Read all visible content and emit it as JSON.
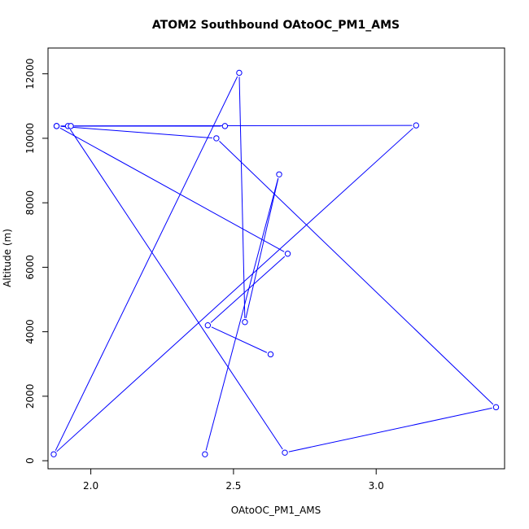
{
  "chart_data": {
    "type": "line",
    "title": "ATOM2 Southbound OAtoOC_PM1_AMS",
    "xlabel": "OAtoOC_PM1_AMS",
    "ylabel": "Altitude (m)",
    "xlim": [
      1.85,
      3.45
    ],
    "ylim": [
      -250,
      12800
    ],
    "xticks": [
      2.0,
      2.5,
      3.0
    ],
    "xtick_labels": [
      "2.0",
      "2.5",
      "3.0"
    ],
    "yticks": [
      0,
      2000,
      4000,
      6000,
      8000,
      10000,
      12000
    ],
    "ytick_labels": [
      "0",
      "2000",
      "4000",
      "6000",
      "8000",
      "10000",
      "12000"
    ],
    "series": [
      {
        "markers": "open-circle",
        "color": "#0000ff",
        "x": [
          2.63,
          2.41,
          2.69,
          1.88,
          2.44,
          3.42,
          2.68,
          1.92,
          1.88,
          2.47,
          1.93,
          3.14,
          1.87,
          2.52,
          2.54,
          2.66,
          2.4
        ],
        "y": [
          3300,
          4200,
          6420,
          10380,
          10000,
          1660,
          250,
          10380,
          10380,
          10380,
          10380,
          10400,
          200,
          12030,
          4300,
          8880,
          200
        ]
      }
    ]
  }
}
